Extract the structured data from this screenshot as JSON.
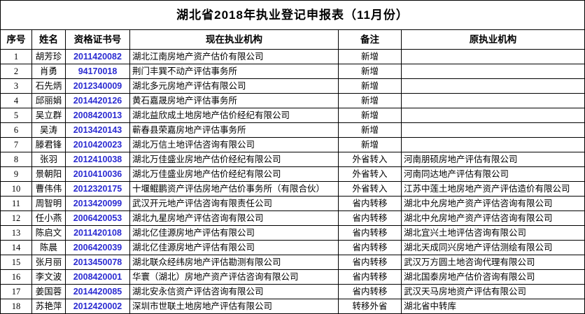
{
  "title": "湖北省2018年执业登记申报表（11月份）",
  "colors": {
    "cert_number": "#2b2bd2",
    "border": "#000000",
    "background": "#ffffff",
    "text": "#000000"
  },
  "table": {
    "headers": [
      "序号",
      "姓名",
      "资格证书号",
      "现在执业机构",
      "备注",
      "原执业机构"
    ],
    "rows": [
      {
        "no": "1",
        "name": "胡芳珍",
        "cert": "2011420082",
        "current": "湖北江南房地产资产估价有限公司",
        "remark": "新增",
        "original": ""
      },
      {
        "no": "2",
        "name": "肖勇",
        "cert": "94170018",
        "current": "荆门丰巽不动产评估事务所",
        "remark": "新增",
        "original": ""
      },
      {
        "no": "3",
        "name": "石先炳",
        "cert": "2012340009",
        "current": "湖北多元房地产评估有限公司",
        "remark": "新增",
        "original": ""
      },
      {
        "no": "4",
        "name": "邱丽娟",
        "cert": "2014420126",
        "current": "黄石嘉晟房地产评估事务所",
        "remark": "新增",
        "original": ""
      },
      {
        "no": "5",
        "name": "吴立群",
        "cert": "2008420013",
        "current": "湖北益欣成土地房地产估价经纪有限公司",
        "remark": "新增",
        "original": ""
      },
      {
        "no": "6",
        "name": "吴涛",
        "cert": "2013420143",
        "current": "蕲春县荣嘉房地产评估事务所",
        "remark": "新增",
        "original": ""
      },
      {
        "no": "7",
        "name": "滕君锋",
        "cert": "2010420023",
        "current": "湖北万信土地评估咨询有限公司",
        "remark": "新增",
        "original": ""
      },
      {
        "no": "8",
        "name": "张羽",
        "cert": "2012410038",
        "current": "湖北万佳盛业房地产估价经纪有限公司",
        "remark": "外省转入",
        "original": "河南朋硕房地产评估有限公司"
      },
      {
        "no": "9",
        "name": "景朝阳",
        "cert": "2010410036",
        "current": "湖北万佳盛业房地产估价经纪有限公司",
        "remark": "外省转入",
        "original": "河南同达地产评估有限公司"
      },
      {
        "no": "10",
        "name": "曹伟伟",
        "cert": "2012320175",
        "current": "十堰鲲鹏资产评估房地产估价事务所（有限合伙）",
        "remark": "外省转入",
        "original": "江苏中莲土地房地产资产评估造价有限公司"
      },
      {
        "no": "11",
        "name": "周智明",
        "cert": "2013420099",
        "current": "武汉开元地产评估咨询有限责任公司",
        "remark": "省内转移",
        "original": "湖北中允房地产资产评估咨询有限公司"
      },
      {
        "no": "12",
        "name": "任小燕",
        "cert": "2006420053",
        "current": "湖北九星房地产评估咨询有限公司",
        "remark": "省内转移",
        "original": "湖北中允房地产资产评估咨询有限公司"
      },
      {
        "no": "13",
        "name": "陈启文",
        "cert": "2011420108",
        "current": "湖北亿佳源房地产评估有限公司",
        "remark": "省内转移",
        "original": "湖北宜兴土地评估咨询有限公司"
      },
      {
        "no": "14",
        "name": "陈晨",
        "cert": "2006420039",
        "current": "湖北亿佳源房地产评估有限公司",
        "remark": "省内转移",
        "original": "湖北天成同兴房地产评估测绘有限公司"
      },
      {
        "no": "15",
        "name": "张月丽",
        "cert": "2013450078",
        "current": "湖北联众经纬房地产评估勘测有限公司",
        "remark": "省内转移",
        "original": "武汉万方圆土地咨询代理有限公司"
      },
      {
        "no": "16",
        "name": "李文波",
        "cert": "2008420001",
        "current": "华寰（湖北）房地产资产评估咨询有限公司",
        "remark": "省内转移",
        "original": "湖北国泰房地产估价咨询有限公司"
      },
      {
        "no": "17",
        "name": "姜国蓉",
        "cert": "2014420085",
        "current": "湖北安永信资产评估咨询有限公司",
        "remark": "省内转移",
        "original": "武汉天马房地资产评估有限公司"
      },
      {
        "no": "18",
        "name": "苏艳萍",
        "cert": "2012420002",
        "current": "深圳市世联土地房地产评估有限公司",
        "remark": "转移外省",
        "original": "湖北省中转库"
      }
    ]
  }
}
